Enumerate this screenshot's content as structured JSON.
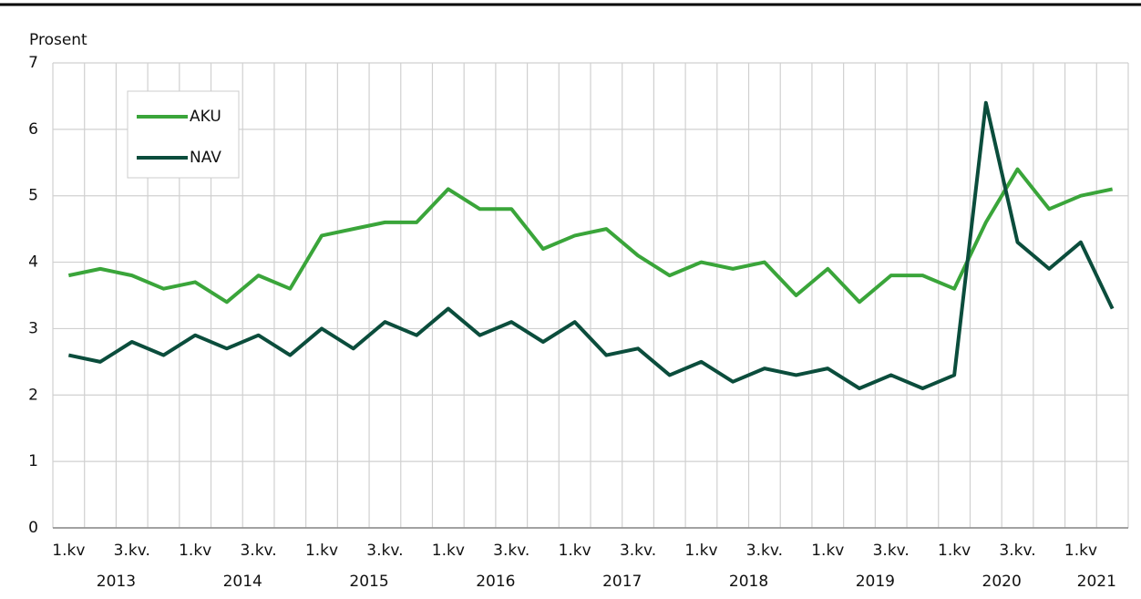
{
  "chart_data": {
    "type": "line",
    "y_axis_label": "Prosent",
    "categories": [
      "1.kv",
      null,
      "3.kv.",
      null,
      "1.kv",
      null,
      "3.kv.",
      null,
      "1.kv",
      null,
      "3.kv.",
      null,
      "1.kv",
      null,
      "3.kv.",
      null,
      "1.kv",
      null,
      "3.kv.",
      null,
      "1.kv",
      null,
      "3.kv.",
      null,
      "1.kv",
      null,
      "3.kv.",
      null,
      "1.kv",
      null,
      "3.kv.",
      null,
      "1.kv",
      null
    ],
    "years": [
      "2013",
      "2014",
      "2015",
      "2016",
      "2017",
      "2018",
      "2019",
      "2020",
      "2021"
    ],
    "series": [
      {
        "name": "AKU",
        "color": "#3aa53a",
        "values": [
          3.8,
          3.9,
          3.8,
          3.6,
          3.7,
          3.4,
          3.8,
          3.6,
          4.4,
          4.5,
          4.6,
          4.6,
          5.1,
          4.8,
          4.8,
          4.2,
          4.4,
          4.5,
          4.1,
          3.8,
          4.0,
          3.9,
          4.0,
          3.5,
          3.9,
          3.4,
          3.8,
          3.8,
          3.6,
          4.6,
          5.4,
          4.8,
          5.0,
          5.1
        ]
      },
      {
        "name": "NAV",
        "color": "#0b4d3c",
        "values": [
          2.6,
          2.5,
          2.8,
          2.6,
          2.9,
          2.7,
          2.9,
          2.6,
          3.0,
          2.7,
          3.1,
          2.9,
          3.3,
          2.9,
          3.1,
          2.8,
          3.1,
          2.6,
          2.7,
          2.3,
          2.5,
          2.2,
          2.4,
          2.3,
          2.4,
          2.1,
          2.3,
          2.1,
          2.3,
          6.4,
          4.3,
          3.9,
          4.3,
          3.3
        ]
      }
    ],
    "ylim": [
      0,
      7
    ],
    "yticks": [
      0,
      1,
      2,
      3,
      4,
      5,
      6,
      7
    ],
    "grid": true,
    "legend": "upper left"
  }
}
